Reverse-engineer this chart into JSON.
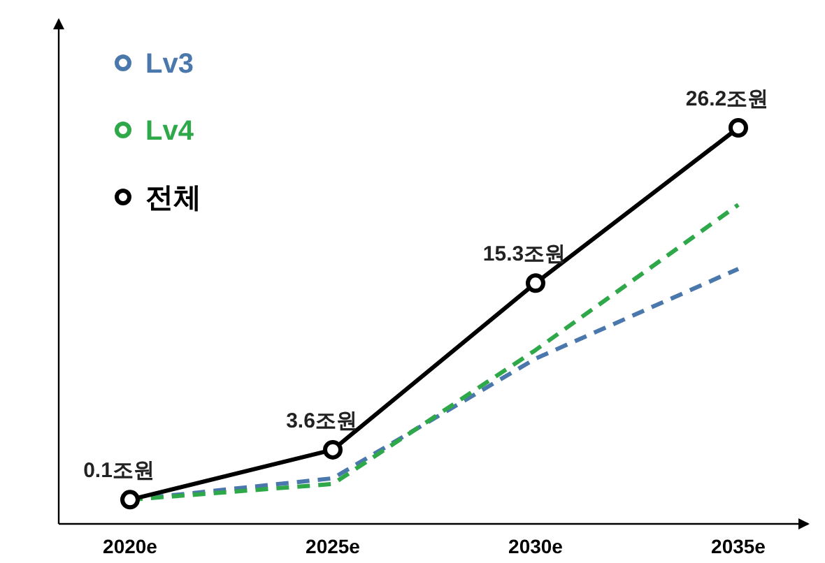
{
  "chart_data": {
    "type": "line",
    "categories": [
      "2020e",
      "2025e",
      "2030e",
      "2035e"
    ],
    "ylim": [
      -1.6,
      33.8
    ],
    "legend": "top left",
    "series": [
      {
        "name": "Lv3",
        "color": "#4a78ac",
        "values": [
          0.1,
          1.6,
          10.0,
          16.3
        ],
        "line_style": "dashed",
        "marker": "none"
      },
      {
        "name": "Lv4",
        "color": "#2fa84a",
        "values": [
          0.1,
          1.2,
          10.6,
          20.8
        ],
        "line_style": "dashed",
        "marker": "none"
      },
      {
        "name": "전체",
        "color": "#000000",
        "values": [
          0.1,
          3.6,
          15.3,
          26.2
        ],
        "line_style": "solid",
        "marker": "circle",
        "value_labels": [
          "0.1조원",
          "3.6조원",
          "15.3조원",
          "26.2조원"
        ]
      }
    ]
  }
}
